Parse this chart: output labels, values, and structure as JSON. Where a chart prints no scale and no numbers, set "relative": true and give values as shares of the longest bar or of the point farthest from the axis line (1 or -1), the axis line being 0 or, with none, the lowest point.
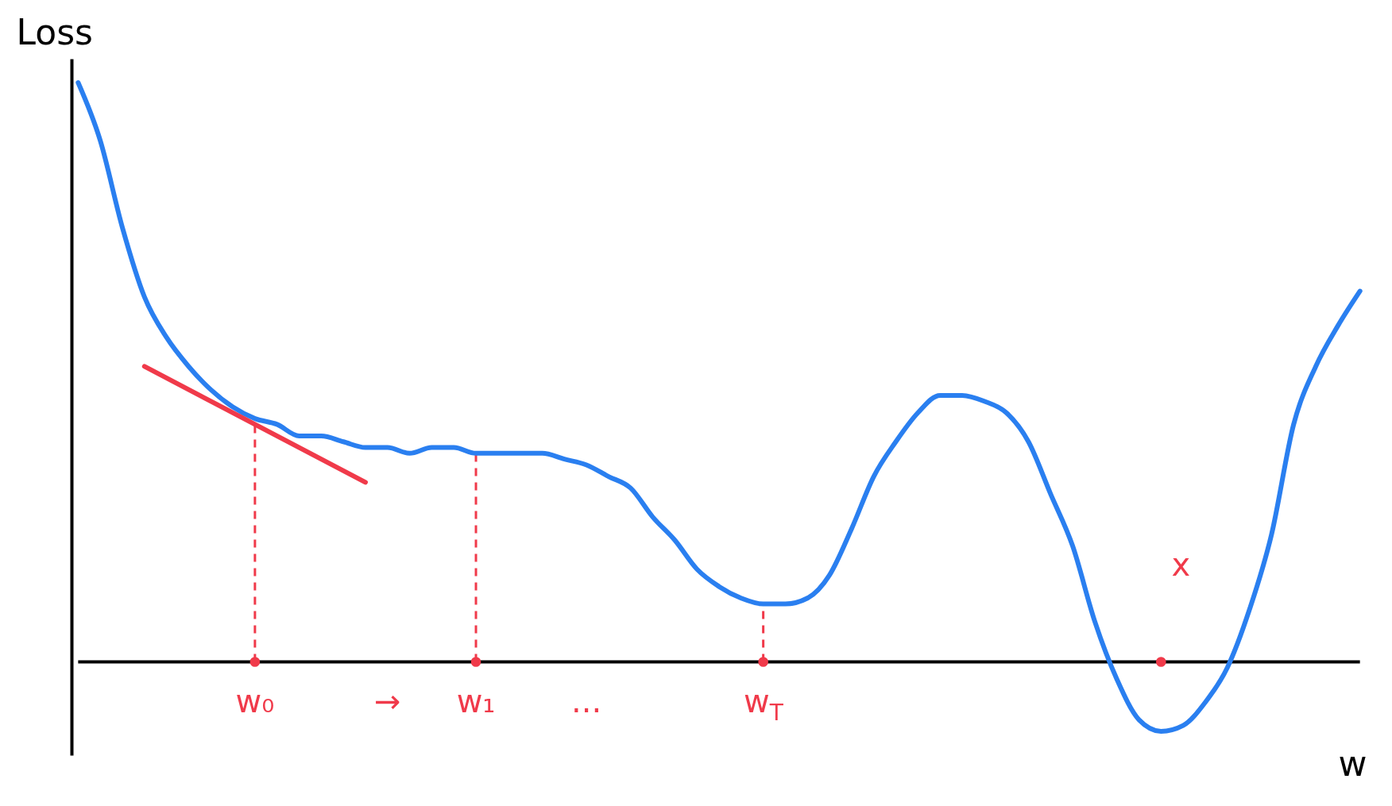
{
  "chart_data": {
    "type": "line",
    "relative": true,
    "ylabel": "Loss",
    "xlabel": "w",
    "annotations": [
      "x"
    ],
    "categories": [
      null,
      null,
      null,
      null,
      null,
      null,
      null,
      null,
      "w₀",
      null,
      null,
      null,
      null,
      null,
      "→",
      null,
      null,
      null,
      "w₁",
      null,
      null,
      null,
      null,
      "...",
      null,
      null,
      null,
      null,
      null,
      null,
      null,
      "w$_{T}$",
      null,
      null,
      null,
      null,
      null,
      null,
      null,
      null,
      null,
      null,
      null,
      null,
      null,
      null,
      null,
      null,
      null,
      null,
      null,
      null,
      null,
      null,
      null,
      null,
      null,
      null,
      null
    ],
    "series": [
      {
        "color": "#2a7ff0",
        "values": [
          1.0,
          0.9,
          0.75,
          0.63,
          0.56,
          0.51,
          0.47,
          0.44,
          0.42,
          0.41,
          0.39,
          0.39,
          0.38,
          0.37,
          0.37,
          0.36,
          0.37,
          0.37,
          0.36,
          0.36,
          0.36,
          0.36,
          0.35,
          0.34,
          0.32,
          0.3,
          0.25,
          0.21,
          0.16,
          0.13,
          0.11,
          0.1,
          0.1,
          0.11,
          0.15,
          0.23,
          0.32,
          0.38,
          0.43,
          0.46,
          0.46,
          0.45,
          0.43,
          0.38,
          0.29,
          0.2,
          0.07,
          -0.03,
          -0.1,
          -0.12,
          -0.11,
          -0.07,
          -0.01,
          0.09,
          0.22,
          0.41,
          0.51,
          0.58,
          0.64
        ]
      },
      {
        "color": "#f03a4a",
        "values": [
          null,
          null,
          null,
          0.51,
          null,
          null,
          null,
          null,
          null,
          null,
          null,
          null,
          null,
          0.31,
          null,
          null,
          null,
          null,
          null,
          null,
          null,
          null,
          null,
          null,
          null,
          null,
          null,
          null,
          null,
          null,
          null,
          null,
          null,
          null,
          null,
          null,
          null,
          null,
          null,
          null,
          null,
          null,
          null,
          null,
          null,
          null,
          null,
          null,
          null,
          null,
          null,
          null,
          null,
          null,
          null,
          null,
          null,
          null,
          null
        ]
      },
      {
        "type": "scatter",
        "color": "#f03a4a",
        "values": [
          null,
          null,
          null,
          null,
          null,
          null,
          null,
          null,
          0,
          null,
          null,
          null,
          null,
          null,
          null,
          null,
          null,
          null,
          0,
          null,
          null,
          null,
          null,
          null,
          null,
          null,
          null,
          null,
          null,
          null,
          null,
          0,
          null,
          null,
          null,
          null,
          null,
          null,
          null,
          null,
          null,
          null,
          null,
          null,
          null,
          null,
          null,
          null,
          null,
          0,
          null,
          null,
          null,
          null,
          null,
          null,
          null,
          null,
          null
        ]
      }
    ],
    "ref_lines": [
      {
        "axis": "x",
        "value": "w₀",
        "color": "#f03a4a",
        "line_style": "dashed"
      },
      {
        "axis": "x",
        "value": "w₁",
        "color": "#f03a4a",
        "line_style": "dashed"
      },
      {
        "axis": "x",
        "value": "w$_{T}$",
        "color": "#f03a4a",
        "line_style": "dashed"
      }
    ]
  }
}
